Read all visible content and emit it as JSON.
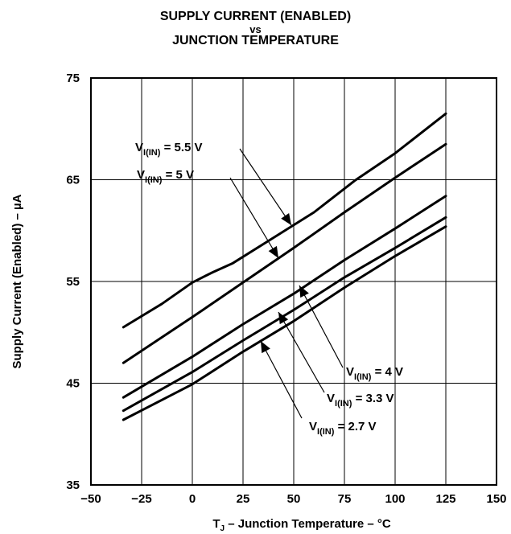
{
  "chart_data": {
    "type": "line",
    "title": [
      "SUPPLY CURRENT (ENABLED)",
      "vs",
      "JUNCTION TEMPERATURE"
    ],
    "xlabel": {
      "prefix": "T",
      "sub": "J",
      "suffix": " – Junction Temperature – °C"
    },
    "ylabel": "Supply Current (Enabled) – µA",
    "xlim": [
      -50,
      150
    ],
    "ylim": [
      35,
      75
    ],
    "xticks": [
      -50,
      -25,
      0,
      25,
      50,
      75,
      100,
      125,
      150
    ],
    "yticks": [
      35,
      45,
      55,
      65,
      75
    ],
    "grid": true,
    "series": [
      {
        "name": "V_I(IN) = 5.5 V",
        "label": {
          "main": "V",
          "sub": "I(IN)",
          "rest": " = 5.5 V"
        },
        "x": [
          -34,
          -15,
          0,
          10,
          20,
          40,
          60,
          80,
          100,
          125
        ],
        "y": [
          50.5,
          52.8,
          54.9,
          55.9,
          56.8,
          59.3,
          61.8,
          64.9,
          67.6,
          71.5
        ]
      },
      {
        "name": "V_I(IN) = 5 V",
        "label": {
          "main": "V",
          "sub": "I(IN)",
          "rest": " = 5 V"
        },
        "x": [
          -34,
          0,
          25,
          50,
          75,
          100,
          125
        ],
        "y": [
          47.0,
          51.5,
          54.9,
          58.3,
          61.8,
          65.2,
          68.5
        ]
      },
      {
        "name": "V_I(IN) = 4 V",
        "label": {
          "main": "V",
          "sub": "I(IN)",
          "rest": " = 4 V"
        },
        "x": [
          -34,
          0,
          25,
          50,
          75,
          100,
          125
        ],
        "y": [
          43.6,
          47.6,
          50.8,
          53.8,
          57.1,
          60.2,
          63.4
        ]
      },
      {
        "name": "V_I(IN) = 3.3 V",
        "label": {
          "main": "V",
          "sub": "I(IN)",
          "rest": " = 3.3 V"
        },
        "x": [
          -34,
          0,
          25,
          50,
          75,
          100,
          125
        ],
        "y": [
          42.3,
          46.1,
          49.2,
          52.2,
          55.4,
          58.3,
          61.3
        ]
      },
      {
        "name": "V_I(IN) = 2.7 V",
        "label": {
          "main": "V",
          "sub": "I(IN)",
          "rest": " = 2.7 V"
        },
        "x": [
          -34,
          0,
          25,
          50,
          75,
          100,
          125
        ],
        "y": [
          41.4,
          44.9,
          48.1,
          51.1,
          54.4,
          57.5,
          60.4
        ]
      }
    ]
  }
}
